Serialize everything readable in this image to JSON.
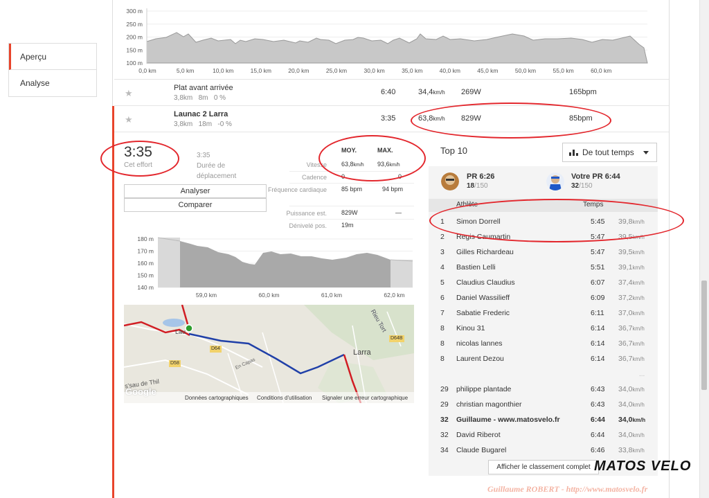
{
  "nav": {
    "items": [
      "Aperçu",
      "Analyse"
    ]
  },
  "top_profile": {
    "y_ticks": [
      "300 m",
      "250 m",
      "200 m",
      "150 m",
      "100 m"
    ],
    "x_ticks": [
      "0,0 km",
      "5,0 km",
      "10,0 km",
      "15,0 km",
      "20,0 km",
      "25,0 km",
      "30,0 km",
      "35,0 km",
      "40,0 km",
      "45,0 km",
      "50,0 km",
      "55,0 km",
      "60,0 km"
    ]
  },
  "segments": [
    {
      "name": "Plat avant arrivée",
      "distance": "3,8km",
      "elev": "8m",
      "grade": "0 %",
      "time": "6:40",
      "speed": "34,4",
      "speed_unit": "km/h",
      "power": "269W",
      "hr": "165bpm"
    },
    {
      "name": "Launac 2 Larra",
      "distance": "3,8km",
      "elev": "18m",
      "grade": "-0 %",
      "time": "3:35",
      "speed": "63,8",
      "speed_unit": "km/h",
      "power": "829W",
      "hr": "85bpm"
    }
  ],
  "effort": {
    "time": "3:35",
    "time_label": "Cet effort",
    "moving_time": "3:35",
    "moving_label": "Durée de déplacement",
    "analyze_label": "Analyser",
    "compare_label": "Comparer"
  },
  "stats": {
    "col_avg": "MOY.",
    "col_max": "MAX.",
    "rows": [
      {
        "label": "Vitesse",
        "avg": "63,8",
        "avg_unit": "km/h",
        "max": "93,6",
        "max_unit": "km/h"
      },
      {
        "label": "Cadence",
        "avg": "0",
        "max": "0"
      },
      {
        "label": "Fréquence cardiaque",
        "avg": "85 bpm",
        "max": "94 bpm"
      },
      {
        "label": "Puissance est.",
        "avg": "829W",
        "max": "—"
      },
      {
        "label": "Dénivelé pos.",
        "avg": "19m",
        "max": ""
      }
    ]
  },
  "seg_profile": {
    "y_ticks": [
      "180 m",
      "170 m",
      "160 m",
      "150 m",
      "140 m"
    ],
    "x_ticks": [
      "59,0 km",
      "60,0 km",
      "61,0 km",
      "62,0 km"
    ]
  },
  "map": {
    "labels": [
      "Larra",
      "Rieu Tort",
      "D64B",
      "D64",
      "D58",
      "En Capas",
      "Lau",
      "Google",
      "s'sau de Thil"
    ],
    "footer": [
      "Données cartographiques",
      "Conditions d'utilisation",
      "Signaler une erreur cartographique"
    ]
  },
  "top10": {
    "title": "Top 10",
    "timeframe": "De tout temps",
    "pr": {
      "title": "PR 6:26",
      "rank": "18",
      "of": "/150"
    },
    "your_pr": {
      "title": "Votre PR 6:44",
      "rank": "32",
      "of": "/150"
    },
    "col_athlete": "Athlète",
    "col_time": "Temps",
    "speed_unit": "km/h",
    "rows": [
      {
        "rank": "1",
        "name": "Simon Dorrell",
        "time": "5:45",
        "speed": "39,8"
      },
      {
        "rank": "2",
        "name": "Regis Caumartin",
        "time": "5:47",
        "speed": "39,5"
      },
      {
        "rank": "3",
        "name": "Gilles Richardeau",
        "time": "5:47",
        "speed": "39,5"
      },
      {
        "rank": "4",
        "name": "Bastien Lelli",
        "time": "5:51",
        "speed": "39,1"
      },
      {
        "rank": "5",
        "name": "Claudius Claudius",
        "time": "6:07",
        "speed": "37,4"
      },
      {
        "rank": "6",
        "name": "Daniel Wassilieff",
        "time": "6:09",
        "speed": "37,2"
      },
      {
        "rank": "7",
        "name": "Sabatie Frederic",
        "time": "6:11",
        "speed": "37,0"
      },
      {
        "rank": "8",
        "name": "Kinou 31",
        "time": "6:14",
        "speed": "36,7"
      },
      {
        "rank": "8",
        "name": "nicolas lannes",
        "time": "6:14",
        "speed": "36,7"
      },
      {
        "rank": "8",
        "name": "Laurent Dezou",
        "time": "6:14",
        "speed": "36,7"
      }
    ],
    "ellipsis": "...",
    "nearby": [
      {
        "rank": "29",
        "name": "philippe plantade",
        "time": "6:43",
        "speed": "34,0"
      },
      {
        "rank": "29",
        "name": "christian magonthier",
        "time": "6:43",
        "speed": "34,0"
      },
      {
        "rank": "32",
        "name": "Guillaume - www.matosvelo.fr",
        "time": "6:44",
        "speed": "34,0",
        "me": true
      },
      {
        "rank": "32",
        "name": "David Riberot",
        "time": "6:44",
        "speed": "34,0"
      },
      {
        "rank": "34",
        "name": "Claude Bugarel",
        "time": "6:46",
        "speed": "33,8"
      }
    ],
    "full_leaderboard_label": "Afficher le classement complet"
  },
  "watermark": {
    "logo": "MATOS VELO",
    "credit": "Guillaume ROBERT - http://www.matosvelo.fr"
  }
}
